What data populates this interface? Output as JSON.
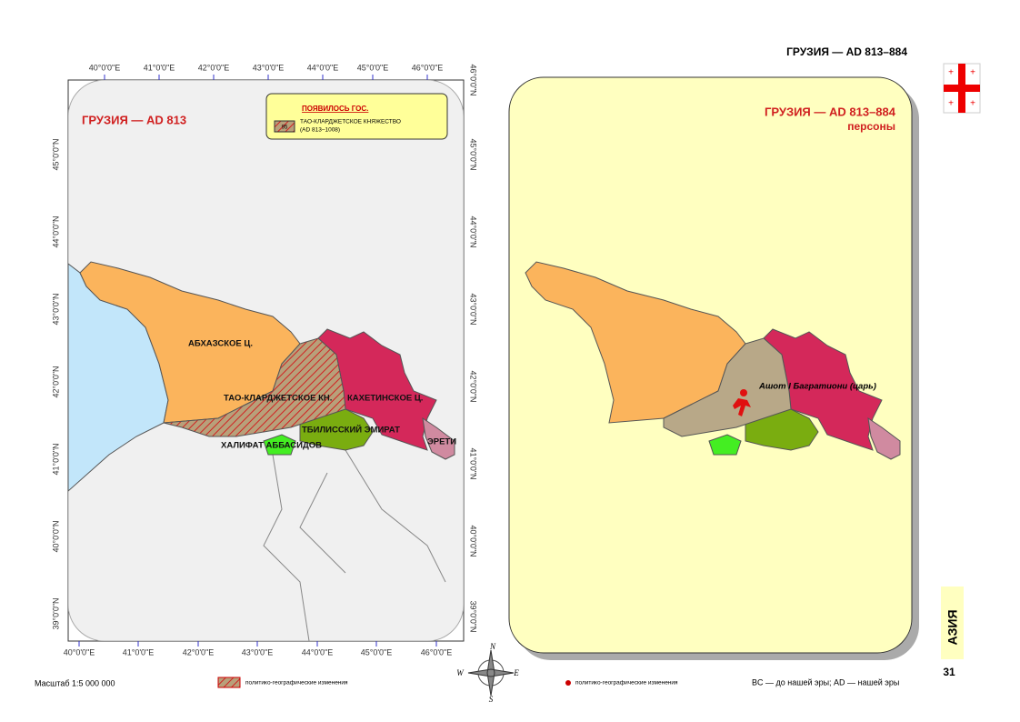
{
  "header": {
    "title": "ГРУЗИЯ — AD 813–884"
  },
  "left_map": {
    "title": "ГРУЗИЯ — AD 813",
    "legend": {
      "heading": "ПОЯВИЛОСЬ ГОС.",
      "swatch": "95",
      "line1": "ТАО-КЛАРДЖЕТСКОЕ КНЯЖЕСТВО",
      "line2": "(AD 813–1008)"
    },
    "regions": [
      "АБХАЗСКОЕ Ц.",
      "ТАО-КЛАРДЖЕТСКОЕ КН.",
      "КАХЕТИНСКОЕ Ц.",
      "ТБИЛИССКИЙ ЭМИРАТ",
      "ХАЛИФАТ АББАСИДОВ",
      "ЭРЕТИ"
    ],
    "top_lon": [
      "40°0'0\"E",
      "41°0'0\"E",
      "42°0'0\"E",
      "43°0'0\"E",
      "44°0'0\"E",
      "45°0'0\"E",
      "46°0'0\"E"
    ],
    "bottom_lon": [
      "40°0'0\"E",
      "41°0'0\"E",
      "42°0'0\"E",
      "43°0'0\"E",
      "44°0'0\"E",
      "45°0'0\"E",
      "46°0'0\"E"
    ],
    "left_lat": [
      "45°0'0\"N",
      "44°0'0\"N",
      "43°0'0\"N",
      "42°0'0\"N",
      "41°0'0\"N",
      "40°0'0\"N",
      "39°0'0\"N"
    ],
    "right_lat": [
      "46°0'0\"N",
      "45°0'0\"N",
      "44°0'0\"N",
      "43°0'0\"N",
      "42°0'0\"N",
      "41°0'0\"N",
      "40°0'0\"N",
      "39°0'0\"N"
    ]
  },
  "right_map": {
    "title": "ГРУЗИЯ — AD 813–884",
    "subtitle": "персоны",
    "person": "Ашот I Багратиони (царь)"
  },
  "side": {
    "section": "АЗИЯ",
    "page": "31"
  },
  "footer": {
    "scale": "Масштаб 1:5 000 000",
    "legend_left": "политико-географические изменения",
    "legend_right": "политико-географические изменения",
    "note": "BC — до нашей эры; AD — нашей эры",
    "compass": [
      "N",
      "W",
      "E",
      "S"
    ]
  }
}
